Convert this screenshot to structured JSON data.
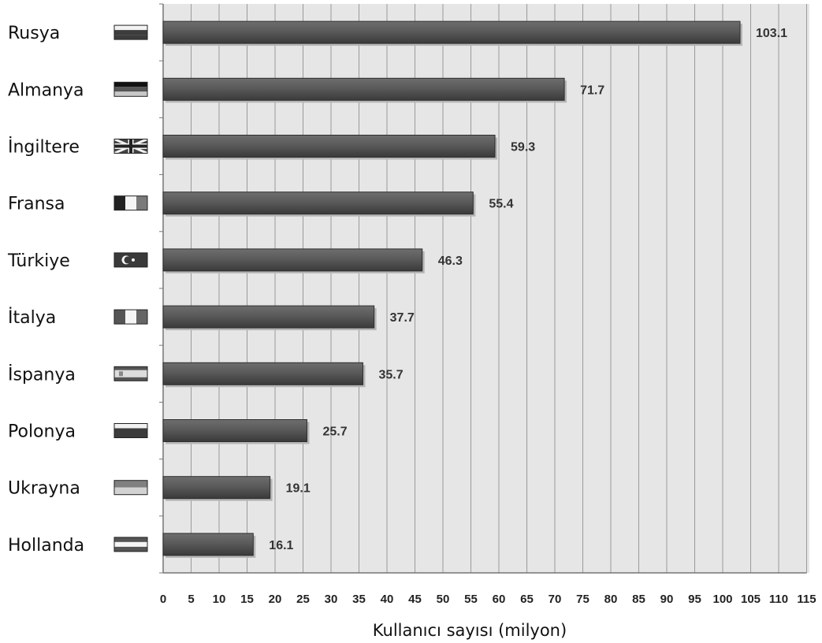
{
  "chart_data": {
    "type": "bar",
    "orientation": "horizontal",
    "categories": [
      "Rusya",
      "Almanya",
      "İngiltere",
      "Fransa",
      "Türkiye",
      "İtalya",
      "İspanya",
      "Polonya",
      "Ukrayna",
      "Hollanda"
    ],
    "values": [
      103.1,
      71.7,
      59.3,
      55.4,
      46.3,
      37.7,
      35.7,
      25.7,
      19.1,
      16.1
    ],
    "value_labels": [
      "103.1",
      "71.7",
      "59.3",
      "55.4",
      "46.3",
      "37.7",
      "35.7",
      "25.7",
      "19.1",
      "16.1"
    ],
    "xlabel": "Kullanıcı sayısı (milyon)",
    "ylabel": "",
    "xlim": [
      0,
      115
    ],
    "xticks": [
      "0",
      "5",
      "10",
      "15",
      "20",
      "25",
      "30",
      "35",
      "40",
      "45",
      "50",
      "55",
      "60",
      "65",
      "70",
      "75",
      "80",
      "85",
      "90",
      "95",
      "100",
      "105",
      "110",
      "115"
    ],
    "grid": "vertical",
    "flags": [
      "flag-russia-icon",
      "flag-germany-icon",
      "flag-uk-icon",
      "flag-france-icon",
      "flag-turkey-icon",
      "flag-italy-icon",
      "flag-spain-icon",
      "flag-poland-icon",
      "flag-ukraine-icon",
      "flag-netherlands-icon"
    ],
    "colors": {
      "bar": "#555555",
      "plot_background": "#e6e6e6",
      "grid": "#9a9a9a"
    }
  }
}
